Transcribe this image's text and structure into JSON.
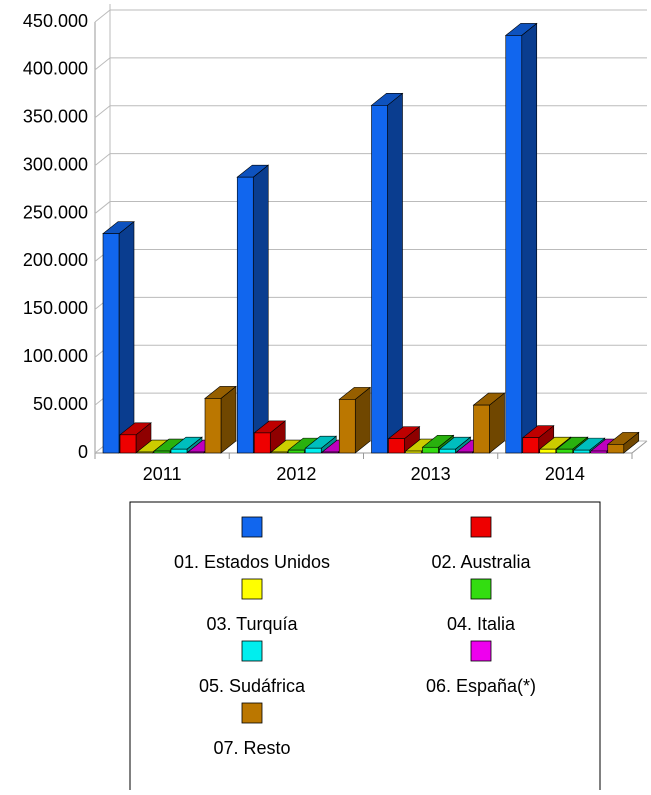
{
  "chart_data": {
    "type": "bar3d",
    "categories": [
      "2011",
      "2012",
      "2013",
      "2014"
    ],
    "series": [
      {
        "name": "01. Estados Unidos",
        "color": "#1166ee",
        "values": [
          229000,
          288000,
          363000,
          436000
        ]
      },
      {
        "name": "02. Australia",
        "color": "#ee0000",
        "values": [
          19000,
          21000,
          15000,
          16000
        ]
      },
      {
        "name": "03. Turquía",
        "color": "#ffff00",
        "values": [
          1000,
          1000,
          2000,
          4000
        ]
      },
      {
        "name": "04. Italia",
        "color": "#33dd11",
        "values": [
          2000,
          3000,
          6000,
          4000
        ]
      },
      {
        "name": "05. Sudáfrica",
        "color": "#00eeee",
        "values": [
          4000,
          5000,
          4000,
          3000
        ]
      },
      {
        "name": "06. España(*)",
        "color": "#ee00ee",
        "values": [
          1000,
          1000,
          1000,
          2000
        ]
      },
      {
        "name": "07. Resto",
        "color": "#bb7700",
        "values": [
          57000,
          56000,
          50000,
          9000
        ]
      }
    ],
    "ylim": [
      0,
      450000
    ],
    "yticks": [
      0,
      {
        "value": 50000,
        "label": "50.000"
      },
      {
        "value": 100000,
        "label": "100.000"
      },
      {
        "value": 150000,
        "label": "150.000"
      },
      {
        "value": 200000,
        "label": "200.000"
      },
      {
        "value": 250000,
        "label": "250.000"
      },
      {
        "value": 300000,
        "label": "300.000"
      },
      {
        "value": 350000,
        "label": "350.000"
      },
      {
        "value": 400000,
        "label": "400.000"
      },
      {
        "value": 450000,
        "label": "450.000"
      }
    ],
    "grid": true
  }
}
